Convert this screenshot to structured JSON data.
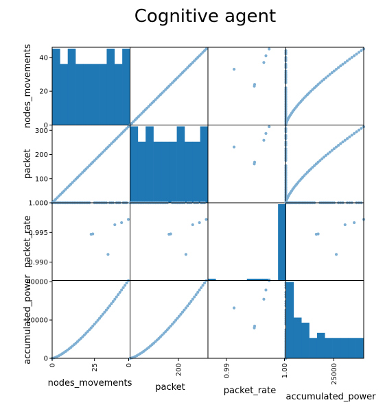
{
  "figure": {
    "title": "Cognitive agent"
  },
  "chart_data": {
    "type": "scatter",
    "subtype": "scatter_matrix",
    "title": "Cognitive agent",
    "variables": [
      "nodes_movements",
      "packet",
      "packet_rate",
      "accumulated_power"
    ],
    "ranges": {
      "nodes_movements": [
        0,
        46
      ],
      "packet": [
        0,
        322
      ],
      "packet_rate": [
        0.9869,
        1.0
      ],
      "accumulated_power": [
        0,
        40600
      ]
    },
    "ticks": {
      "nodes_movements": {
        "values": [
          0,
          20,
          40
        ],
        "x_labels": [
          "0",
          "25",
          "0"
        ],
        "y_labels": [
          "0",
          "20",
          "40"
        ]
      },
      "packet": {
        "values": [
          0,
          100,
          200,
          300
        ],
        "x_labels": [
          "200"
        ],
        "y_labels": [
          "0",
          "100",
          "200",
          "300"
        ]
      },
      "packet_rate": {
        "values": [
          0.99,
          0.995,
          1.0
        ],
        "x_labels": [
          "0.99",
          "1.00"
        ],
        "y_labels": [
          "0.990",
          "0.995",
          "1.000"
        ]
      },
      "accumulated_power": {
        "values": [
          0,
          20000,
          40000
        ],
        "x_labels": [
          "25000"
        ],
        "y_labels": [
          "0",
          "20000",
          "40000"
        ]
      }
    },
    "histograms": {
      "nodes_movements": {
        "bin_tops_count": [
          5,
          4,
          5,
          4,
          4,
          4,
          4,
          5,
          4,
          5
        ]
      },
      "packet": {
        "bin_tops_count": [
          5,
          4,
          5,
          4,
          4,
          4,
          5,
          4,
          4,
          5
        ]
      },
      "packet_rate": {
        "bin_tops_count": [
          1,
          0,
          0,
          0,
          0,
          1,
          1,
          1,
          0,
          42
        ]
      },
      "accumulated_power": {
        "bin_tops_count": [
          15,
          8,
          7,
          4,
          5,
          4,
          4,
          4,
          4,
          4
        ]
      }
    },
    "packet_rate_values": [
      0.9913,
      0.9947,
      0.99475,
      0.9963,
      0.99665,
      0.9972,
      1.0
    ],
    "relationships": {
      "packet_vs_nodes_movements": "packet = 7 * nodes_movements",
      "accumulated_power_vs_nodes_movements": "accumulated_power grows roughly as nodes_movements^1.4 up to 40600",
      "packet_rate": "mostly 1.000 with a few lower values"
    },
    "grid": false,
    "legend": "none",
    "colors": {
      "points": "#7fb0d3",
      "bars": "#1f77b4",
      "frame": "#000000"
    }
  }
}
